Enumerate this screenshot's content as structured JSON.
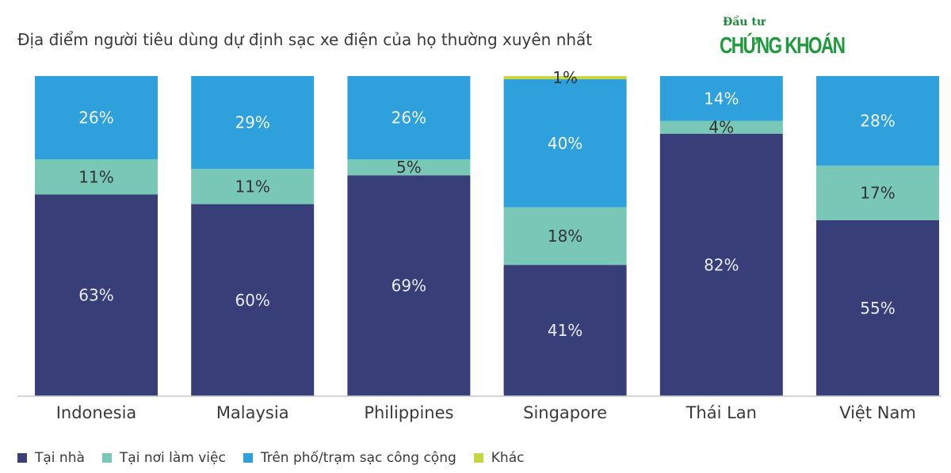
{
  "chart_data": {
    "type": "bar",
    "stacked": true,
    "title": "Địa điểm người tiêu dùng dự định sạc xe điện của họ thường xuyên nhất",
    "categories": [
      "Indonesia",
      "Malaysia",
      "Philippines",
      "Singapore",
      "Thái Lan",
      "Việt Nam"
    ],
    "series": [
      {
        "name": "Tại nhà",
        "color": "#383e78",
        "values": [
          63,
          60,
          69,
          41,
          82,
          55
        ],
        "labels": [
          "63%",
          "60%",
          "69%",
          "41%",
          "82%",
          "55%"
        ]
      },
      {
        "name": "Tại nơi làm việc",
        "color": "#78c7b7",
        "values": [
          11,
          11,
          5,
          18,
          4,
          17
        ],
        "labels": [
          "11%",
          "11%",
          "5%",
          "18%",
          "4%",
          "17%"
        ]
      },
      {
        "name": "Trên phố/trạm sạc công cộng",
        "color": "#2ea1dc",
        "values": [
          26,
          29,
          26,
          40,
          14,
          28
        ],
        "labels": [
          "26%",
          "29%",
          "26%",
          "40%",
          "14%",
          "28%"
        ]
      },
      {
        "name": "Khác",
        "color": "#c5d641",
        "values": [
          0,
          0,
          0,
          1,
          0,
          0
        ],
        "labels": [
          "",
          "",
          "",
          "1%",
          "",
          ""
        ]
      }
    ],
    "ylim": [
      0,
      100
    ],
    "grid": false,
    "legend_position": "bottom-left"
  },
  "logo": {
    "top_text": "Đầu tư",
    "main_text": "CHỨNG KHOÁN"
  }
}
